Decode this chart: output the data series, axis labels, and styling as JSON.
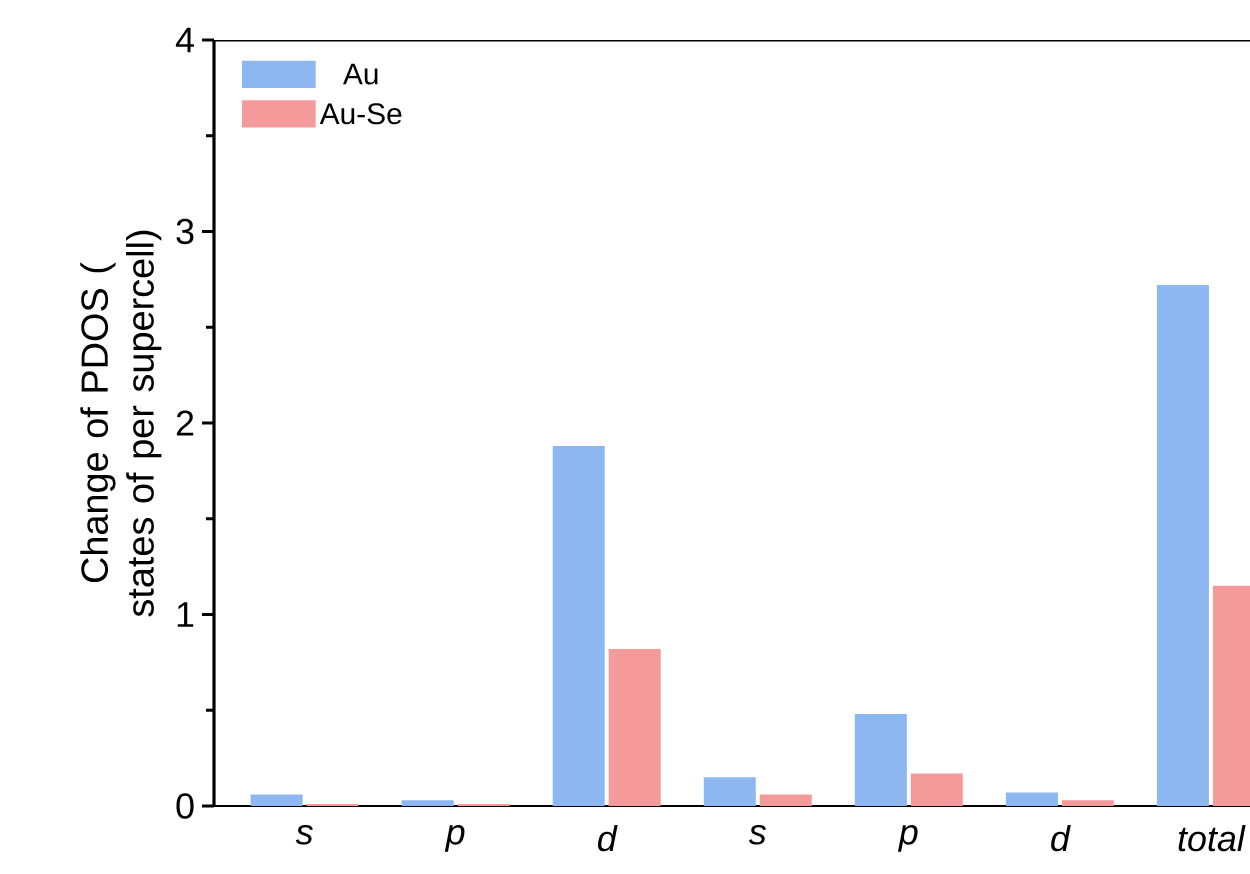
{
  "chart_data": {
    "type": "bar",
    "ylabel": "Change of PDOS ( states of per supercell)",
    "categories": [
      "s",
      "p",
      "d",
      "s",
      "p",
      "d",
      "total"
    ],
    "series": [
      {
        "name": "Au",
        "color": "#8db7f0",
        "values": [
          0.06,
          0.03,
          1.88,
          0.15,
          0.48,
          0.07,
          2.72
        ]
      },
      {
        "name": "Au-Se",
        "color": "#f59a9a",
        "values": [
          0.01,
          0.01,
          0.82,
          0.06,
          0.17,
          0.03,
          1.15
        ]
      }
    ],
    "ylim": [
      0,
      4
    ],
    "yticks": [
      0,
      1,
      2,
      3,
      4
    ],
    "legend": "top left",
    "grid": false
  }
}
